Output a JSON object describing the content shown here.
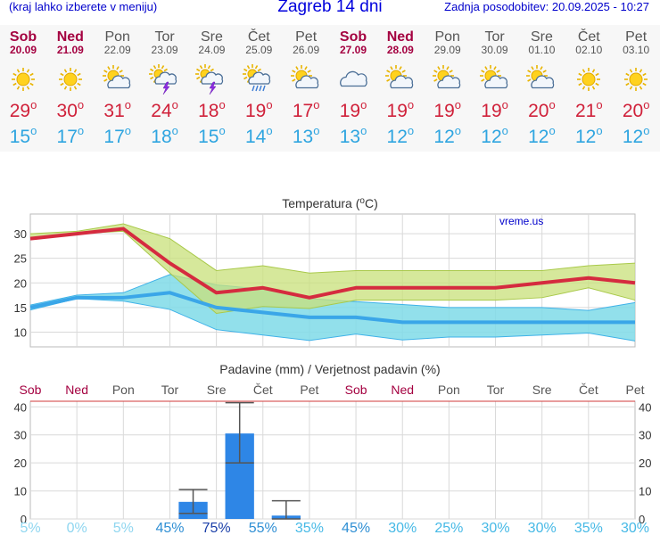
{
  "header": {
    "menu_hint": "(kraj lahko izberete v meniju)",
    "title": "Zagreb 14 dni",
    "last_update": "Zadnja posodobitev: 20.09.2025 - 10:27"
  },
  "degree_symbol": "o",
  "days": [
    {
      "name": "Sob",
      "date": "20.09",
      "weekend": true,
      "icon": "sun-icon",
      "tmax": "29",
      "tmin": "15"
    },
    {
      "name": "Ned",
      "date": "21.09",
      "weekend": true,
      "icon": "sun-icon",
      "tmax": "30",
      "tmin": "17"
    },
    {
      "name": "Pon",
      "date": "22.09",
      "weekend": false,
      "icon": "sun-cloud-icon",
      "tmax": "31",
      "tmin": "17"
    },
    {
      "name": "Tor",
      "date": "23.09",
      "weekend": false,
      "icon": "thunderstorm-icon",
      "tmax": "24",
      "tmin": "18"
    },
    {
      "name": "Sre",
      "date": "24.09",
      "weekend": false,
      "icon": "sun-thunderstorm-icon",
      "tmax": "18",
      "tmin": "15"
    },
    {
      "name": "Čet",
      "date": "25.09",
      "weekend": false,
      "icon": "sun-rain-icon",
      "tmax": "19",
      "tmin": "14"
    },
    {
      "name": "Pet",
      "date": "26.09",
      "weekend": false,
      "icon": "sun-cloud-icon",
      "tmax": "17",
      "tmin": "13"
    },
    {
      "name": "Sob",
      "date": "27.09",
      "weekend": true,
      "icon": "cloud-icon",
      "tmax": "19",
      "tmin": "13"
    },
    {
      "name": "Ned",
      "date": "28.09",
      "weekend": true,
      "icon": "sun-cloud-icon",
      "tmax": "19",
      "tmin": "12"
    },
    {
      "name": "Pon",
      "date": "29.09",
      "weekend": false,
      "icon": "sun-cloud-icon",
      "tmax": "19",
      "tmin": "12"
    },
    {
      "name": "Tor",
      "date": "30.09",
      "weekend": false,
      "icon": "sun-cloud-icon",
      "tmax": "19",
      "tmin": "12"
    },
    {
      "name": "Sre",
      "date": "01.10",
      "weekend": false,
      "icon": "sun-cloud-icon",
      "tmax": "20",
      "tmin": "12"
    },
    {
      "name": "Čet",
      "date": "02.10",
      "weekend": false,
      "icon": "sun-icon",
      "tmax": "21",
      "tmin": "12"
    },
    {
      "name": "Pet",
      "date": "03.10",
      "weekend": false,
      "icon": "sun-icon",
      "tmax": "20",
      "tmin": "12"
    }
  ],
  "colors": {
    "tmax": "#d52b3f",
    "tmin": "#3aa6e8",
    "tmax_band": "#c8e07a",
    "tmin_band": "#7fdbe8",
    "overlap_band": "#79c77a",
    "bar": "#2e86e6",
    "weekend": "#a40040",
    "weekday": "#555555",
    "link": "#0000cc",
    "prob": "#46b9e6"
  },
  "chart_data": [
    {
      "type": "line",
      "title": "Temperatura (oC)",
      "watermark": "vreme.us",
      "x": [
        "Sob",
        "Ned",
        "Pon",
        "Tor",
        "Sre",
        "Čet",
        "Pet",
        "Sob",
        "Ned",
        "Pon",
        "Tor",
        "Sre",
        "Čet",
        "Pet"
      ],
      "ylim": [
        7,
        34
      ],
      "yticks": [
        10,
        15,
        20,
        25,
        30
      ],
      "grid": true,
      "series": [
        {
          "name": "tmax",
          "values": [
            29,
            30,
            31,
            24,
            18,
            19,
            17,
            19,
            19,
            19,
            19,
            20,
            21,
            20
          ],
          "band_high": [
            30,
            30.5,
            32,
            29,
            22.5,
            23.5,
            22,
            22.5,
            22.5,
            22.5,
            22.5,
            22.5,
            23.5,
            24
          ],
          "band_low": [
            29,
            30,
            30.5,
            22,
            13.8,
            15.2,
            14.8,
            16.5,
            16.5,
            16.5,
            16.5,
            17,
            19,
            16.5
          ]
        },
        {
          "name": "tmin",
          "values": [
            15,
            17,
            17,
            18,
            15,
            14,
            13,
            13,
            12,
            12,
            12,
            12,
            12,
            12
          ],
          "band_high": [
            15.5,
            17.5,
            18,
            21.7,
            19.6,
            18.7,
            16.8,
            16.2,
            15.6,
            15,
            15,
            15,
            14.4,
            16
          ],
          "band_low": [
            14.5,
            16.8,
            16.3,
            14.6,
            10.5,
            9.4,
            8.3,
            9.6,
            8.4,
            9,
            9,
            9.4,
            9.8,
            8.2
          ]
        }
      ]
    },
    {
      "type": "bar",
      "title": "Padavine (mm) / Verjetnost padavin (%)",
      "categories": [
        "Sob",
        "Ned",
        "Pon",
        "Tor",
        "Sre",
        "Čet",
        "Pet",
        "Sob",
        "Ned",
        "Pon",
        "Tor",
        "Sre",
        "Čet",
        "Pet"
      ],
      "weekend": [
        true,
        true,
        false,
        false,
        false,
        false,
        false,
        true,
        true,
        false,
        false,
        false,
        false,
        false
      ],
      "values": [
        0,
        0,
        0,
        6.1,
        30.5,
        1.2,
        0,
        0,
        0,
        0,
        0,
        0,
        0,
        0
      ],
      "error_high": [
        0,
        0,
        0,
        10.5,
        41.5,
        6.5,
        0,
        0,
        0,
        0,
        0,
        0,
        0,
        0
      ],
      "error_low": [
        0,
        0,
        0,
        2,
        20,
        0,
        0,
        0,
        0,
        0,
        0,
        0,
        0,
        0
      ],
      "probability": [
        "5%",
        "0%",
        "5%",
        "45%",
        "75%",
        "55%",
        "35%",
        "45%",
        "30%",
        "25%",
        "30%",
        "30%",
        "35%",
        "30%"
      ],
      "ylim": [
        0,
        42
      ],
      "yticks": [
        0,
        10,
        20,
        30,
        40
      ],
      "grid": true
    }
  ]
}
